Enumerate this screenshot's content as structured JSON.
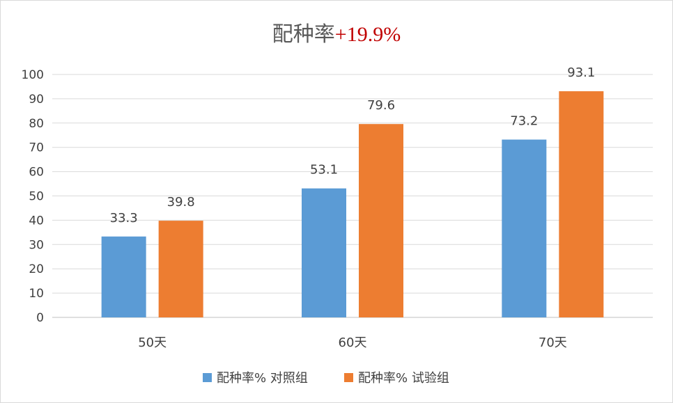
{
  "chart_data": {
    "type": "bar",
    "title": "配种率",
    "title_highlight": "+19.9%",
    "title_highlight_color": "#c00000",
    "categories": [
      "50天",
      "60天",
      "70天"
    ],
    "series": [
      {
        "name": "配种率% 对照组",
        "color": "#5b9bd5",
        "values": [
          33.3,
          53.1,
          73.2
        ],
        "labels": [
          "33.3",
          "53.1",
          "73.2"
        ]
      },
      {
        "name": "配种率% 试验组",
        "color": "#ed7d31",
        "values": [
          39.8,
          79.6,
          93.1
        ],
        "labels": [
          "39.8",
          "79.6",
          "93.1"
        ]
      }
    ],
    "ylim": [
      0,
      100
    ],
    "yticks": [
      "0",
      "10",
      "20",
      "30",
      "40",
      "50",
      "60",
      "70",
      "80",
      "90",
      "100"
    ],
    "grid": true,
    "legend_position": "bottom",
    "xlabel": "",
    "ylabel": ""
  }
}
